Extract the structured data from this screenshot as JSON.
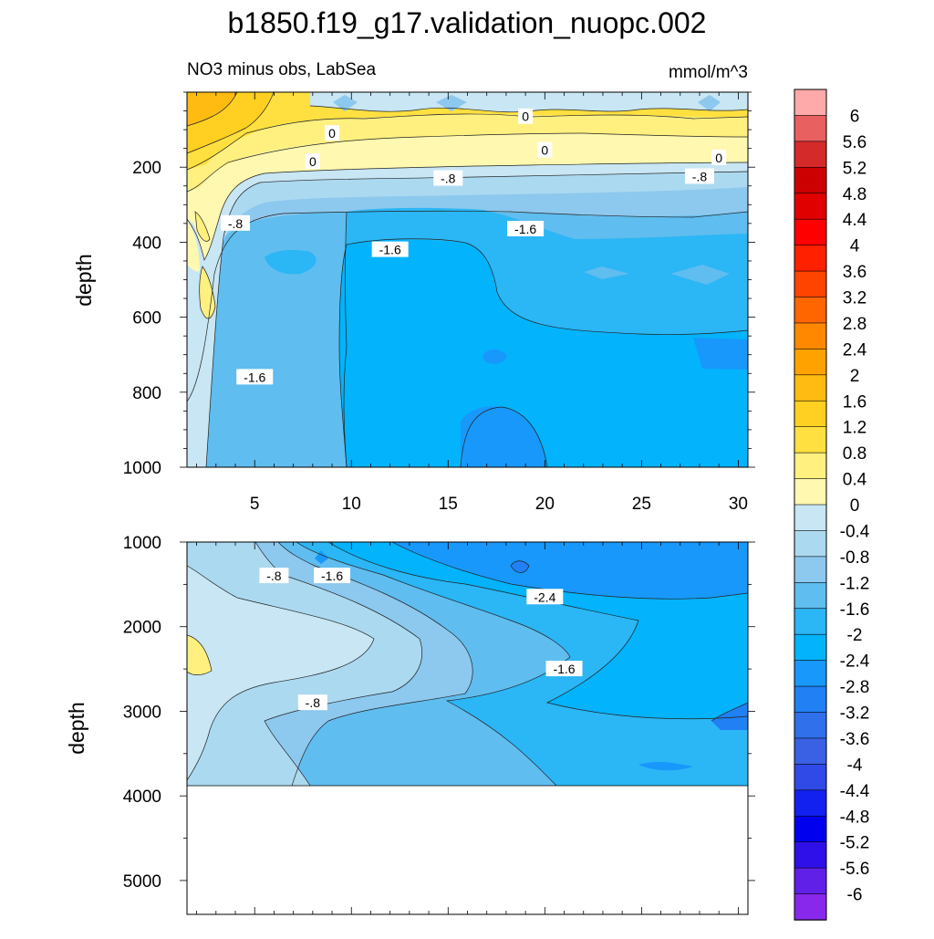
{
  "title": "b1850.f19_g17.validation_nuopc.002",
  "subtitle_left": "NO3 minus obs, LabSea",
  "subtitle_right": "mmol/m^3",
  "chart_data": [
    {
      "type": "heatmap",
      "panel": "upper",
      "ylabel": "depth",
      "xlabel": "",
      "xlim": [
        1.5,
        30.5
      ],
      "ylim": [
        1000,
        0
      ],
      "x_ticks": [
        5,
        10,
        15,
        20,
        25,
        30
      ],
      "x_tick_labels": [
        "5",
        "10",
        "15",
        "20",
        "25",
        "30"
      ],
      "y_ticks": [
        200,
        400,
        600,
        800,
        1000
      ],
      "y_tick_labels": [
        "200",
        "400",
        "600",
        "800",
        "1000"
      ],
      "contour_labels": [
        {
          "text": "0",
          "x": 9.0,
          "y": 110
        },
        {
          "text": "0",
          "x": 19.0,
          "y": 65
        },
        {
          "text": "0",
          "x": 20.0,
          "y": 155
        },
        {
          "text": "0",
          "x": 29.0,
          "y": 175
        },
        {
          "text": "0",
          "x": 8.0,
          "y": 185
        },
        {
          "text": "-.8",
          "x": 15.0,
          "y": 230
        },
        {
          "text": "-.8",
          "x": 28.0,
          "y": 225
        },
        {
          "text": "-.8",
          "x": 4.0,
          "y": 350
        },
        {
          "text": "-1.6",
          "x": 12.0,
          "y": 420
        },
        {
          "text": "-1.6",
          "x": 19.0,
          "y": 365
        },
        {
          "text": "-1.6",
          "x": 5.0,
          "y": 760
        }
      ],
      "regions": [
        {
          "level": -2.4,
          "depth": [
            480,
            1000
          ],
          "x": [
            7,
            30.5
          ]
        },
        {
          "level": -2.8,
          "depth": [
            860,
            1000
          ],
          "x": [
            16,
            22
          ]
        },
        {
          "level": 0.4,
          "depth": [
            0,
            190
          ],
          "x": [
            1.5,
            30.5
          ]
        }
      ]
    },
    {
      "type": "heatmap",
      "panel": "lower",
      "ylabel": "depth",
      "xlabel": "",
      "xlim": [
        1.5,
        30.5
      ],
      "ylim": [
        5400,
        1000
      ],
      "x_ticks": [
        5,
        10,
        15,
        20,
        25,
        30
      ],
      "y_ticks": [
        1000,
        2000,
        3000,
        4000,
        5000
      ],
      "y_tick_labels": [
        "1000",
        "2000",
        "3000",
        "4000",
        "5000"
      ],
      "data_bottom_depth": 3870,
      "contour_labels": [
        {
          "text": "-.8",
          "x": 6.0,
          "y": 1400
        },
        {
          "text": "-1.6",
          "x": 9.0,
          "y": 1400
        },
        {
          "text": "-2.4",
          "x": 20.0,
          "y": 1650
        },
        {
          "text": "-1.6",
          "x": 21.0,
          "y": 2500
        },
        {
          "text": "-.8",
          "x": 8.0,
          "y": 2900
        }
      ]
    }
  ],
  "colorbar": {
    "labels": [
      "6",
      "5.6",
      "5.2",
      "4.8",
      "4.4",
      "4",
      "3.6",
      "3.2",
      "2.8",
      "2.4",
      "2",
      "1.6",
      "1.2",
      "0.8",
      "0.4",
      "0",
      "-0.4",
      "-0.8",
      "-1.2",
      "-1.6",
      "-2",
      "-2.4",
      "-2.8",
      "-3.2",
      "-3.6",
      "-4",
      "-4.4",
      "-4.8",
      "-5.2",
      "-5.6",
      "-6"
    ],
    "colors": [
      "#ffaaaa",
      "#e86060",
      "#d42a2a",
      "#cc0000",
      "#e00000",
      "#ff0000",
      "#ff2000",
      "#ff4400",
      "#ff6600",
      "#ff8800",
      "#ffa200",
      "#ffbb11",
      "#ffd022",
      "#ffe040",
      "#fff080",
      "#fff8b0",
      "#c8e6f4",
      "#abd9f0",
      "#8dc8ee",
      "#5fbdef",
      "#2bb6f5",
      "#03b3fb",
      "#1898fb",
      "#2080f4",
      "#3070ea",
      "#3a60e4",
      "#2f4ae6",
      "#1220f0",
      "#0000ee",
      "#3010e8",
      "#6020e8",
      "#8828ec"
    ]
  }
}
